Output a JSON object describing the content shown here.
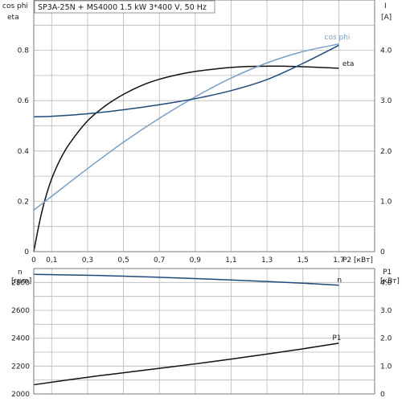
{
  "title": "SP3A-25N + MS4000   1.5 kW   3*400 V, 50 Hz",
  "top_panel": {
    "left_axis_label_1": "cos phi",
    "left_axis_label_2": "eta",
    "right_axis_label_1": "I",
    "right_axis_label_2": "[A]",
    "x_axis_label": "P2 [кВт]",
    "x_ticks": [
      "0",
      "0,1",
      "0,3",
      "0,5",
      "0,7",
      "0,9",
      "1,1",
      "1,3",
      "1,5",
      "1,7"
    ],
    "left_ticks": [
      "0",
      "0.2",
      "0.4",
      "0.6",
      "0.8"
    ],
    "right_ticks": [
      "0",
      "1.0",
      "2.0",
      "3.0",
      "4.0"
    ]
  },
  "bottom_panel": {
    "left_axis_label_1": "n",
    "left_axis_label_2": "[rpm]",
    "right_axis_label_1": "P1",
    "right_axis_label_2": "[кВт]",
    "left_ticks": [
      "2000",
      "2200",
      "2400",
      "2600",
      "2800"
    ],
    "right_ticks": [
      "0",
      "1.0",
      "2.0",
      "3.0",
      "4.0"
    ]
  },
  "colors": {
    "eta": "#111111",
    "cos_phi": "#7a9ec4",
    "current": "#1f4a7a",
    "n": "#1f4a7a",
    "p1": "#111111",
    "grid": "#b8b8b8",
    "frame": "#7a7a7a"
  },
  "chart_data": [
    {
      "type": "line",
      "x_label": "P2 [кВт]",
      "xlim": [
        0,
        1.9
      ],
      "ylim_left": [
        0,
        1.0
      ],
      "ylim_right": [
        0,
        5.0
      ],
      "grid": true,
      "series": [
        {
          "name": "eta",
          "axis": "left",
          "x": [
            0,
            0.03,
            0.06,
            0.1,
            0.15,
            0.2,
            0.3,
            0.4,
            0.5,
            0.6,
            0.7,
            0.8,
            0.9,
            1.0,
            1.1,
            1.2,
            1.3,
            1.4,
            1.5,
            1.6,
            1.7
          ],
          "y": [
            0.0,
            0.11,
            0.2,
            0.29,
            0.37,
            0.43,
            0.52,
            0.58,
            0.625,
            0.66,
            0.685,
            0.703,
            0.716,
            0.725,
            0.732,
            0.736,
            0.737,
            0.737,
            0.735,
            0.732,
            0.729
          ]
        },
        {
          "name": "cos phi",
          "axis": "left",
          "x": [
            0,
            0.1,
            0.3,
            0.5,
            0.7,
            0.9,
            1.1,
            1.3,
            1.5,
            1.7
          ],
          "y": [
            0.165,
            0.22,
            0.33,
            0.435,
            0.53,
            0.615,
            0.69,
            0.75,
            0.795,
            0.825
          ]
        },
        {
          "name": "I",
          "axis": "right",
          "x": [
            0,
            0.1,
            0.3,
            0.5,
            0.7,
            0.9,
            1.1,
            1.3,
            1.5,
            1.7
          ],
          "y": [
            2.68,
            2.69,
            2.74,
            2.82,
            2.92,
            3.04,
            3.2,
            3.42,
            3.74,
            4.1
          ]
        }
      ]
    },
    {
      "type": "line",
      "x_label": "P2 [кВт]",
      "xlim": [
        0,
        1.9
      ],
      "ylim_left": [
        2000,
        2900
      ],
      "ylim_right": [
        0,
        4.5
      ],
      "grid": true,
      "series": [
        {
          "name": "n",
          "axis": "left",
          "x": [
            0,
            0.3,
            0.5,
            0.7,
            0.9,
            1.1,
            1.3,
            1.5,
            1.7
          ],
          "y": [
            2858,
            2852,
            2845,
            2837,
            2828,
            2818,
            2807,
            2795,
            2780
          ]
        },
        {
          "name": "P1",
          "axis": "right",
          "x": [
            0,
            0.3,
            0.5,
            0.7,
            0.9,
            1.1,
            1.3,
            1.5,
            1.7
          ],
          "y": [
            0.33,
            0.6,
            0.76,
            0.92,
            1.08,
            1.25,
            1.43,
            1.62,
            1.82
          ]
        }
      ]
    }
  ]
}
